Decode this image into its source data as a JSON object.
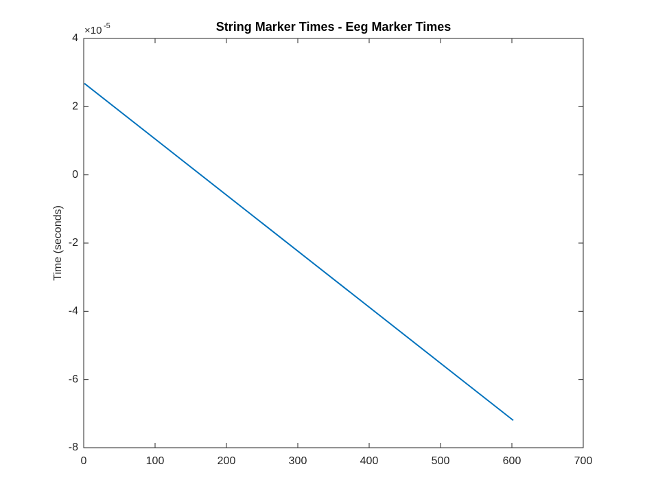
{
  "chart_data": {
    "type": "line",
    "title": "String Marker Times - Eeg Marker Times",
    "y_label": "Time (seconds)",
    "y_scale_base": "×10",
    "y_scale_exponent": "-5",
    "x": [
      1,
      602
    ],
    "series": [
      {
        "color": "#0072bd",
        "values": [
          2.68,
          -7.2
        ]
      }
    ],
    "xlim": [
      0,
      700
    ],
    "xticks": [
      0,
      100,
      200,
      300,
      400,
      500,
      600,
      700
    ],
    "ylim": [
      -8,
      4
    ],
    "yticks": [
      -8,
      -6,
      -4,
      -2,
      0,
      2,
      4
    ],
    "grid": false
  }
}
